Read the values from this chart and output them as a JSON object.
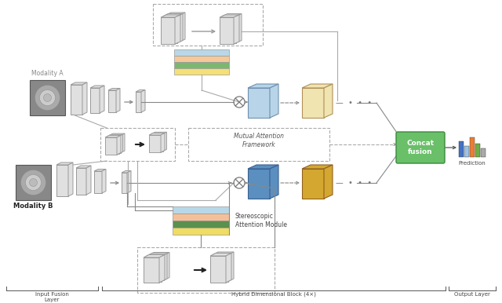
{
  "bg_color": "#ffffff",
  "fig_w": 6.4,
  "fig_h": 3.86,
  "modality_a_label": "Modality A",
  "modality_b_label": "Modality B",
  "mutual_attention_label": "Mutual Attention\nFramework",
  "stereoscopic_label": "Stereoscopic\nAttention Module",
  "concat_fusion_label": "Concat\nfusion",
  "prediction_label": "Prediction",
  "input_fusion_label": "Input Fusion\nLayer",
  "hybrid_block_label": "Hybrid Dimensional Block (4×)",
  "output_layer_label": "Output Layer",
  "concat_box_color": "#6abf69",
  "concat_text_color": "#ffffff",
  "gray_face": "#e0e0e0",
  "gray_edge": "#999999",
  "blue_face": "#b8d4e8",
  "blue_face2": "#5a8fc0",
  "yellow_face": "#f0e4b0",
  "gold_face": "#d4a830",
  "bar_colors_stack": [
    "#b8d8e8",
    "#f5c99a",
    "#7ab870",
    "#f5e078"
  ],
  "stereo_bar_colors": [
    "#b8d8e8",
    "#f5c099",
    "#5a9050",
    "#f0dc60"
  ],
  "pred_bar_colors": [
    "#4472c4",
    "#9dc3e6",
    "#ed7d31",
    "#70ad47",
    "#aaaaaa"
  ],
  "pred_bar_vals": [
    0.7,
    0.5,
    0.9,
    0.6,
    0.4
  ]
}
